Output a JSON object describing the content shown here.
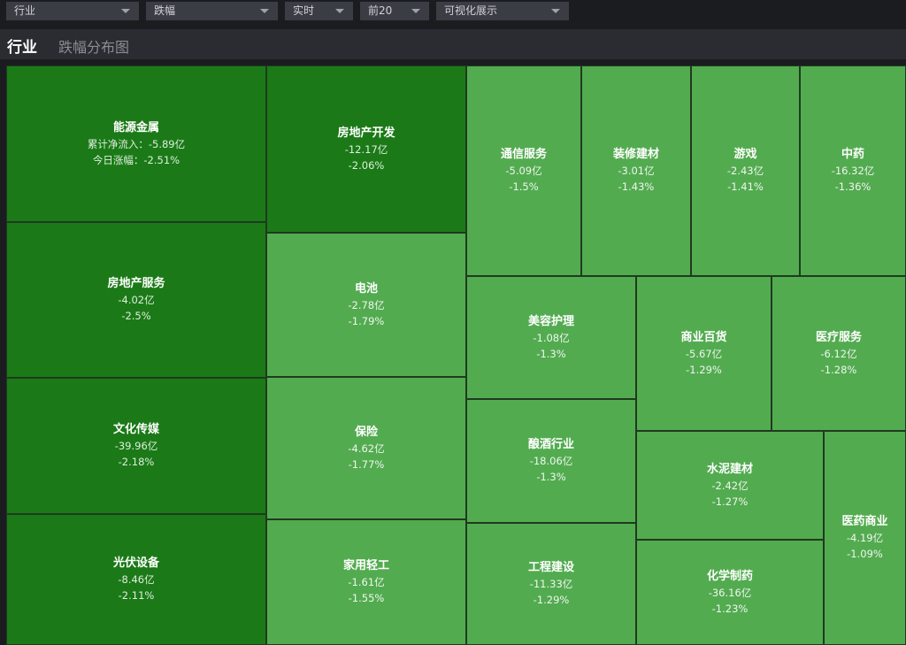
{
  "toolbar": {
    "selects": [
      {
        "value": "行业"
      },
      {
        "value": "跌幅"
      },
      {
        "value": "实时"
      },
      {
        "value": "前20"
      },
      {
        "value": "可视化展示"
      }
    ]
  },
  "header": {
    "title": "行业",
    "tab": "跌幅分布图"
  },
  "labels": {
    "net_inflow_prefix": "累计净流入：",
    "change_prefix": "今日涨幅："
  },
  "colors": {
    "dark_green": "#1b7a17",
    "light_green": "#53ab50"
  },
  "tiles": [
    {
      "name": "能源金属",
      "flow": "-5.89亿",
      "change": "-2.51%"
    },
    {
      "name": "房地产服务",
      "flow": "-4.02亿",
      "change": "-2.5%"
    },
    {
      "name": "文化传媒",
      "flow": "-39.96亿",
      "change": "-2.18%"
    },
    {
      "name": "光伏设备",
      "flow": "-8.46亿",
      "change": "-2.11%"
    },
    {
      "name": "房地产开发",
      "flow": "-12.17亿",
      "change": "-2.06%"
    },
    {
      "name": "电池",
      "flow": "-2.78亿",
      "change": "-1.79%"
    },
    {
      "name": "保险",
      "flow": "-4.62亿",
      "change": "-1.77%"
    },
    {
      "name": "家用轻工",
      "flow": "-1.61亿",
      "change": "-1.55%"
    },
    {
      "name": "通信服务",
      "flow": "-5.09亿",
      "change": "-1.5%"
    },
    {
      "name": "装修建材",
      "flow": "-3.01亿",
      "change": "-1.43%"
    },
    {
      "name": "游戏",
      "flow": "-2.43亿",
      "change": "-1.41%"
    },
    {
      "name": "中药",
      "flow": "-16.32亿",
      "change": "-1.36%"
    },
    {
      "name": "美容护理",
      "flow": "-1.08亿",
      "change": "-1.3%"
    },
    {
      "name": "酿酒行业",
      "flow": "-18.06亿",
      "change": "-1.3%"
    },
    {
      "name": "工程建设",
      "flow": "-11.33亿",
      "change": "-1.29%"
    },
    {
      "name": "商业百货",
      "flow": "-5.67亿",
      "change": "-1.29%"
    },
    {
      "name": "医疗服务",
      "flow": "-6.12亿",
      "change": "-1.28%"
    },
    {
      "name": "水泥建材",
      "flow": "-2.42亿",
      "change": "-1.27%"
    },
    {
      "name": "化学制药",
      "flow": "-36.16亿",
      "change": "-1.23%"
    },
    {
      "name": "医药商业",
      "flow": "-4.19亿",
      "change": "-1.09%"
    }
  ]
}
